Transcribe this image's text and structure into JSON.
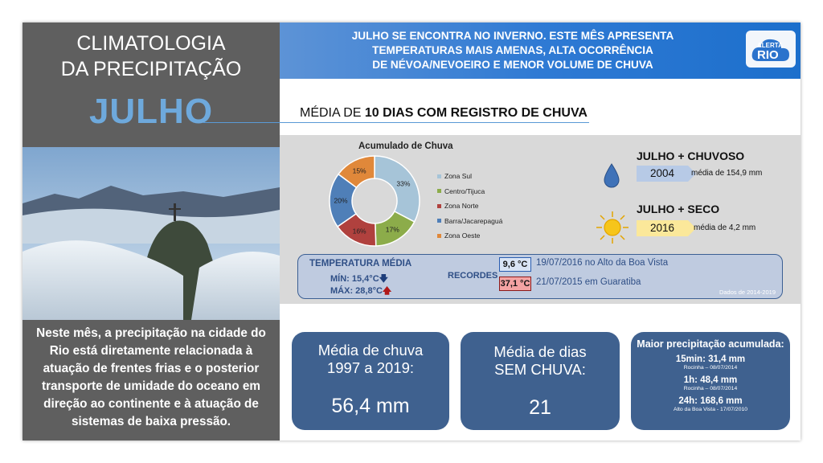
{
  "left": {
    "title_line1": "CLIMATOLOGIA",
    "title_line2": "DA PRECIPITAÇÃO",
    "month": "JULHO",
    "description": "Neste mês, a precipitação na cidade do Rio está diretamente relacionada à atuação de frentes frias e o posterior transporte de umidade do oceano em direção ao continente e à atuação de sistemas de baixa pressão."
  },
  "header": {
    "line1": "JULHO SE ENCONTRA NO INVERNO. ESTE MÊS APRESENTA",
    "line2": "TEMPERATURAS MAIS AMENAS, ALTA OCORRÊNCIA",
    "line3": "DE NÉVOA/NEVOEIRO E MENOR VOLUME DE CHUVA",
    "logo_top": "ALERTA",
    "logo_bottom": "RIO"
  },
  "subtitle": {
    "prefix": "MÉDIA DE ",
    "bold": "10 DIAS COM REGISTRO DE CHUVA"
  },
  "chart_data": {
    "type": "pie",
    "title": "Acumulado de Chuva",
    "categories": [
      "Zona Sul",
      "Centro/Tijuca",
      "Zona Norte",
      "Barra/Jacarepaguá",
      "Zona Oeste"
    ],
    "values": [
      33,
      17,
      16,
      20,
      15
    ],
    "labels": [
      "33%",
      "17%",
      "16%",
      "20%",
      "15%"
    ],
    "colors": [
      "#a6c4d8",
      "#8cac4a",
      "#b0413e",
      "#4f7fb8",
      "#e0883a"
    ],
    "legend_position": "right"
  },
  "extremes": {
    "wet_title": "JULHO + CHUVOSO",
    "wet_year": "2004",
    "wet_note": "média de 154,9 mm",
    "dry_title": "JULHO + SECO",
    "dry_year": "2016",
    "dry_note": "média de 4,2 mm",
    "wet_color": "#4a7bc0",
    "dry_color": "#f3c11e"
  },
  "temperature": {
    "label": "TEMPERATURA MÉDIA",
    "min": "MÍN: 15,4°C",
    "max": "MÁX: 28,8°C",
    "recordes_label": "RECORDES",
    "record_cold_value": "9,6 °C",
    "record_cold_text": "19/07/2016 no Alto da Boa Vista",
    "record_hot_value": "37,1 °C",
    "record_hot_text": "21/07/2015 em Guaratiba",
    "data_note": "Dados de 2014-2019"
  },
  "stats": {
    "avg_rain_label_1": "Média de chuva",
    "avg_rain_label_2": "1997 a 2019:",
    "avg_rain_value": "56,4 mm",
    "dry_days_label_1": "Média  de dias",
    "dry_days_label_2": "SEM CHUVA:",
    "dry_days_value": "21",
    "max_title": "Maior precipitação acumulada:",
    "max_15min": "15min: 31,4 mm",
    "max_15min_place": "Rocinha – 08/07/2014",
    "max_1h": "1h: 48,4 mm",
    "max_1h_place": "Rocinha – 08/07/2014",
    "max_24h": "24h: 168,6 mm",
    "max_24h_place": "Alto da Boa Vista - 17/07/2010"
  }
}
